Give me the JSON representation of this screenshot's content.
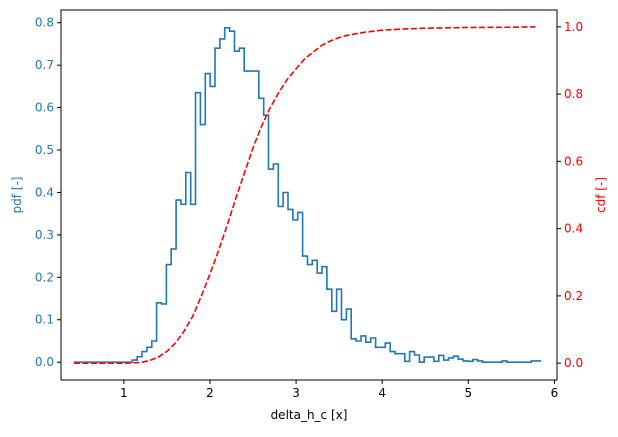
{
  "chart_data": {
    "type": "line",
    "title": "",
    "xlabel": "delta_h_c [x]",
    "ylabel_left": "pdf [-]",
    "ylabel_right": "cdf [-]",
    "xlim": [
      0.27,
      6.03
    ],
    "ylim_left": [
      -0.042,
      0.83
    ],
    "ylim_right": [
      -0.05,
      1.05
    ],
    "xticks": [
      1,
      2,
      3,
      4,
      5,
      6
    ],
    "yticks_left": [
      0.0,
      0.1,
      0.2,
      0.3,
      0.4,
      0.5,
      0.6,
      0.7,
      0.8
    ],
    "yticks_right": [
      0.0,
      0.2,
      0.4,
      0.6,
      0.8,
      1.0
    ],
    "grid": false,
    "legend": null,
    "colors": {
      "pdf": "#1f77b4",
      "cdf": "#ff0000",
      "axes": "#000000"
    },
    "series": [
      {
        "name": "pdf",
        "axis": "left",
        "style": "step",
        "color": "#1f77b4",
        "bin_start": 0.42,
        "bin_width": 0.0565,
        "values": [
          0,
          0,
          0,
          0,
          0,
          0,
          0,
          0,
          0,
          0,
          0,
          0,
          0.005,
          0.013,
          0.025,
          0.035,
          0.05,
          0.14,
          0.137,
          0.23,
          0.267,
          0.382,
          0.372,
          0.447,
          0.372,
          0.635,
          0.56,
          0.68,
          0.65,
          0.74,
          0.762,
          0.788,
          0.78,
          0.733,
          0.74,
          0.686,
          0.686,
          0.686,
          0.622,
          0.582,
          0.455,
          0.467,
          0.367,
          0.4,
          0.36,
          0.335,
          0.353,
          0.25,
          0.23,
          0.24,
          0.21,
          0.225,
          0.172,
          0.12,
          0.172,
          0.1,
          0.125,
          0.055,
          0.05,
          0.062,
          0.047,
          0.057,
          0.035,
          0.035,
          0.045,
          0.025,
          0.02,
          0.02,
          0.002,
          0.025,
          0.017,
          0.0,
          0.012,
          0.012,
          0.002,
          0.016,
          0.005,
          0.01,
          0.014,
          0.007,
          0.003,
          0.002,
          0.006,
          0.003,
          0,
          0,
          0,
          0,
          0.003,
          0,
          0,
          0,
          0,
          0,
          0.003,
          0.003
        ]
      },
      {
        "name": "cdf",
        "axis": "right",
        "style": "dashed",
        "color": "#ff0000",
        "x": [
          0.42,
          1.0,
          1.2,
          1.3,
          1.4,
          1.5,
          1.6,
          1.7,
          1.8,
          1.9,
          2.0,
          2.1,
          2.2,
          2.3,
          2.4,
          2.5,
          2.6,
          2.7,
          2.8,
          2.9,
          3.0,
          3.1,
          3.2,
          3.3,
          3.4,
          3.5,
          3.6,
          3.8,
          4.0,
          4.2,
          4.5,
          5.0,
          5.5,
          5.78
        ],
        "y": [
          0.0,
          0.0,
          0.002,
          0.008,
          0.018,
          0.035,
          0.06,
          0.095,
          0.14,
          0.2,
          0.265,
          0.335,
          0.41,
          0.49,
          0.565,
          0.64,
          0.705,
          0.76,
          0.805,
          0.845,
          0.875,
          0.905,
          0.925,
          0.945,
          0.958,
          0.968,
          0.975,
          0.984,
          0.99,
          0.993,
          0.996,
          0.998,
          0.999,
          1.0
        ]
      }
    ]
  }
}
